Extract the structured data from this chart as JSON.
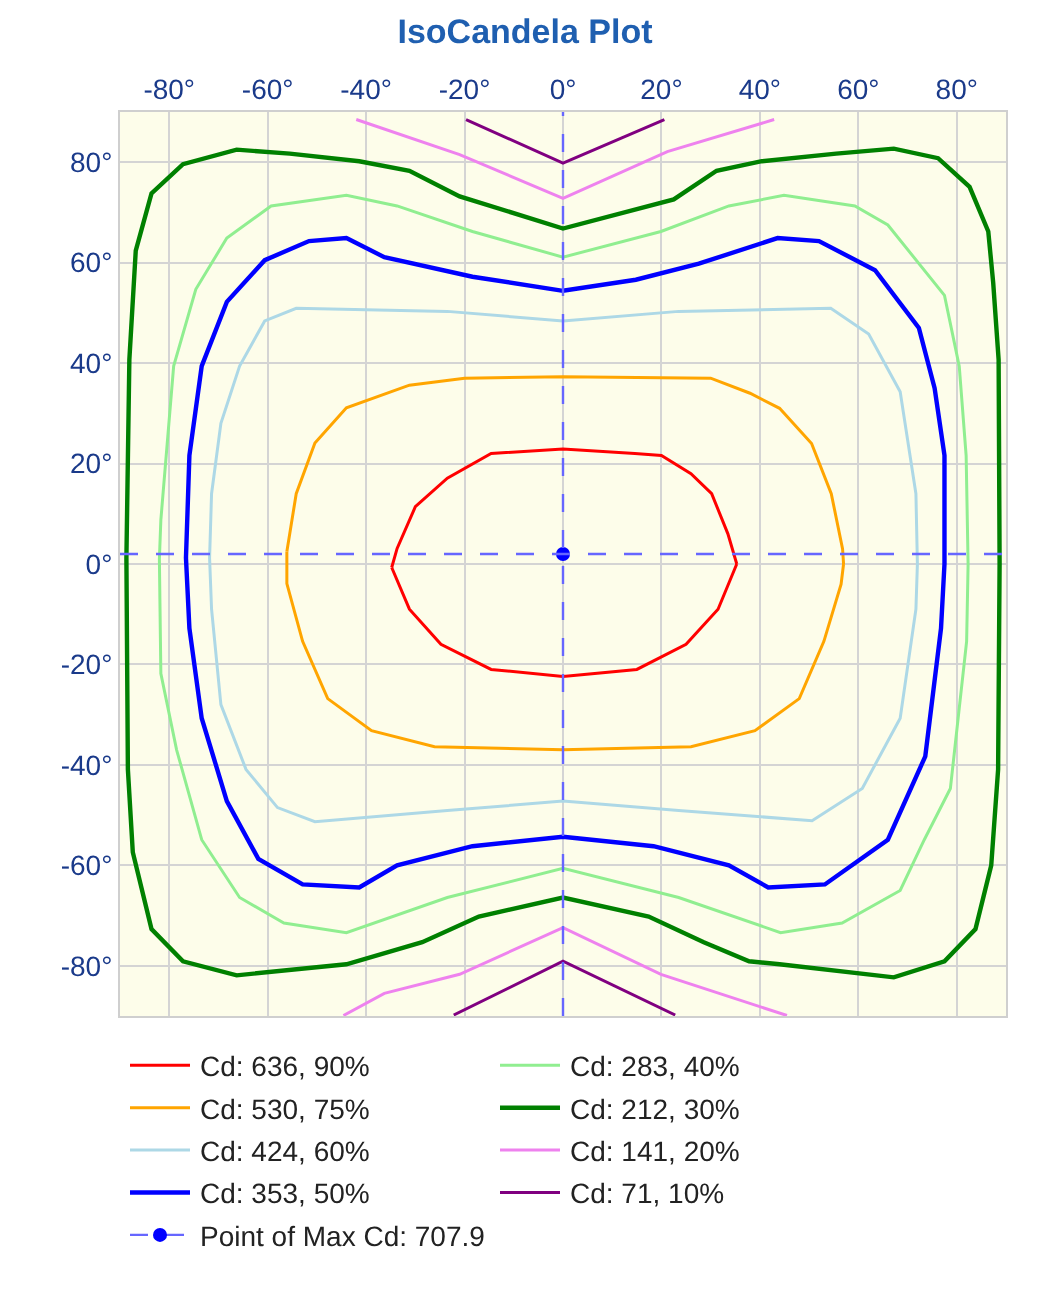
{
  "chart_data": {
    "type": "line",
    "title": "IsoCandela Plot",
    "grid": true,
    "legend": "bottom",
    "xlim": [
      -90,
      90
    ],
    "ylim": [
      -90,
      90
    ],
    "xticks": [
      {
        "value": -80,
        "label": "-80°"
      },
      {
        "value": -60,
        "label": "-60°"
      },
      {
        "value": -40,
        "label": "-40°"
      },
      {
        "value": -20,
        "label": "-20°"
      },
      {
        "value": 0,
        "label": "0°"
      },
      {
        "value": 20,
        "label": "20°"
      },
      {
        "value": 40,
        "label": "40°"
      },
      {
        "value": 60,
        "label": "60°"
      },
      {
        "value": 80,
        "label": "80°"
      }
    ],
    "yticks": [
      {
        "value": -80,
        "label": "-80°"
      },
      {
        "value": -60,
        "label": "-60°"
      },
      {
        "value": -40,
        "label": "-40°"
      },
      {
        "value": -20,
        "label": "-20°"
      },
      {
        "value": 0,
        "label": "0°"
      },
      {
        "value": 20,
        "label": "20°"
      },
      {
        "value": 40,
        "label": "40°"
      },
      {
        "value": 60,
        "label": "60°"
      },
      {
        "value": 80,
        "label": "80°"
      }
    ],
    "series": [
      {
        "name": "Cd: 636, 90%",
        "color": "#ff0000",
        "x": [
          -34.8,
          -33.7,
          -30,
          -23.5,
          -14.6,
          0,
          14.6,
          20,
          26,
          30.2,
          33.5,
          35.3,
          null,
          35.3,
          31.5,
          25,
          15,
          0,
          -14.6,
          -24.8,
          -31.2,
          -34.8
        ],
        "values": [
          -0.7,
          3.1,
          11.4,
          17.1,
          22,
          22.9,
          22,
          21.6,
          18,
          14,
          6,
          0,
          null,
          0,
          -9,
          -16,
          -21,
          -22.4,
          -21,
          -16,
          -9,
          -0.7
        ]
      },
      {
        "name": "Cd: 530, 75%",
        "color": "#ffa500",
        "x": [
          -56.1,
          -54.2,
          -50.4,
          -44,
          -31.2,
          -20,
          0,
          30,
          38,
          44,
          50.5,
          54.5,
          56.8,
          57,
          null,
          57,
          56.5,
          53,
          48,
          39,
          26,
          0,
          -26.1,
          -38.9,
          -47.8,
          -52.9,
          -56.1,
          -56.1
        ],
        "values": [
          2.5,
          14,
          24.1,
          31.1,
          35.6,
          37,
          37.3,
          37,
          34,
          31,
          24,
          14,
          3,
          0,
          null,
          0,
          -4,
          -15.4,
          -26.8,
          -33.2,
          -36.4,
          -37,
          -36.4,
          -33.2,
          -26.8,
          -15.4,
          -3.9,
          2.5
        ]
      },
      {
        "name": "Cd: 424, 60%",
        "color": "#add8e6",
        "x": [
          -71.8,
          -71.4,
          -69.5,
          -65.7,
          -60.6,
          -54.2,
          -23.5,
          0,
          23.5,
          54.4,
          62.1,
          68.5,
          71.7,
          72,
          null,
          72,
          71.7,
          68.5,
          60.8,
          50.6,
          23.5,
          0,
          -23.5,
          -50.4,
          -58,
          -64.4,
          -69.5,
          -71.4,
          -71.8
        ],
        "values": [
          1.2,
          14,
          28,
          39.4,
          48.4,
          50.9,
          50.3,
          48.4,
          50.3,
          50.9,
          45.8,
          34.3,
          14,
          0,
          null,
          0,
          -9,
          -30.7,
          -44.7,
          -51.1,
          -49.1,
          -47.2,
          -49.1,
          -51.3,
          -48.5,
          -40.9,
          -28,
          -9,
          1.2
        ]
      },
      {
        "name": "Cd: 353, 50%",
        "color": "#0000ff",
        "x": [
          -76.6,
          -75.9,
          -73.4,
          -68.3,
          -60.6,
          -51.6,
          -44,
          -36.3,
          -18.4,
          0,
          14.8,
          27.6,
          43.6,
          52,
          63.4,
          72.3,
          75.5,
          77.5,
          77.5,
          null,
          77.5,
          76.8,
          73.6,
          66,
          53.2,
          41.7,
          33.7,
          18.4,
          0,
          -18.4,
          -33.7,
          -41.4,
          -52.9,
          -61.9,
          -68.3,
          -73.4,
          -75.9,
          -76.6
        ],
        "values": [
          1.2,
          21.6,
          39.4,
          52.2,
          60.5,
          64.3,
          64.9,
          61.1,
          57.2,
          54.4,
          56.6,
          59.8,
          64.9,
          64.3,
          58.5,
          47,
          35,
          21.6,
          0,
          null,
          0,
          -12.8,
          -38.3,
          -54.9,
          -63.8,
          -64.4,
          -60,
          -56.2,
          -54.3,
          -56.2,
          -60,
          -64.4,
          -63.8,
          -58.7,
          -47.2,
          -30.7,
          -12.8,
          1.2
        ]
      },
      {
        "name": "Cd: 283, 40%",
        "color": "#90ee90",
        "x": [
          -82,
          -81.7,
          -79.1,
          -74.6,
          -68.3,
          -59.3,
          -44,
          -33.7,
          -18.4,
          0,
          19.9,
          33.7,
          44.9,
          59.3,
          66,
          77.5,
          80.5,
          81.9,
          82.3,
          null,
          82.3,
          82,
          78.7,
          73.4,
          68.5,
          56.7,
          44.2,
          23.5,
          0,
          -23.5,
          -44,
          -56.7,
          -65.7,
          -73.4,
          -78.5,
          -81.7,
          -82
        ],
        "values": [
          1,
          8.8,
          39.4,
          54.7,
          64.9,
          71.3,
          73.4,
          71.3,
          66.2,
          61.1,
          66.2,
          71.3,
          73.4,
          71.3,
          67.5,
          53.5,
          39.4,
          21.6,
          0,
          null,
          0,
          -15.4,
          -44.7,
          -54.9,
          -65,
          -71.5,
          -73.4,
          -66.4,
          -60.6,
          -66.4,
          -73.4,
          -71.5,
          -66.4,
          -54.9,
          -37,
          -21.8,
          1
        ]
      },
      {
        "name": "Cd: 212, 30%",
        "color": "#008000",
        "x": [
          -88.7,
          -88.1,
          -86.8,
          -83.6,
          -77.2,
          -66.3,
          -55.5,
          -41.4,
          -31.2,
          -21,
          0,
          22.5,
          31.2,
          40.4,
          55.5,
          67.2,
          76.2,
          82.6,
          86.4,
          87.4,
          88.5,
          88.7,
          null,
          88.7,
          88.4,
          87,
          83.8,
          77.5,
          67.2,
          44,
          37.8,
          28.6,
          17.4,
          0,
          -17.1,
          -28.6,
          -44,
          -66.3,
          -77.2,
          -83.6,
          -87.4,
          -88.4,
          -88.7
        ],
        "values": [
          1.2,
          40.7,
          62.4,
          73.8,
          79.6,
          82.5,
          81.7,
          80.2,
          78.3,
          73.2,
          66.8,
          72.6,
          78.3,
          80.2,
          81.7,
          82.7,
          80.8,
          75.1,
          66.2,
          56,
          40.7,
          0,
          null,
          0,
          -40.9,
          -60,
          -72.7,
          -79.1,
          -82.3,
          -79.7,
          -79.1,
          -75.3,
          -70.2,
          -66.4,
          -70.2,
          -75.3,
          -79.7,
          -81.9,
          -79.1,
          -72.7,
          -57.4,
          -40.9,
          1.2
        ]
      },
      {
        "name": "Cd: 141, 20%",
        "color": "#ee82ee",
        "x": [
          -42,
          -21,
          0,
          21.2,
          42.9,
          null,
          -44.6,
          -36.3,
          -21,
          0,
          19.9,
          45.5
        ],
        "values": [
          88.5,
          81.5,
          72.8,
          82.1,
          88.5,
          null,
          -89.9,
          -85.5,
          -81.7,
          -72.4,
          -81.7,
          -89.9
        ]
      },
      {
        "name": "Cd: 71, 10%",
        "color": "#800080",
        "x": [
          -19.7,
          0,
          20.6,
          null,
          -22.2,
          0,
          22.8
        ],
        "values": [
          88.5,
          79.8,
          88.5,
          null,
          -89.8,
          -79.1,
          -89.8
        ]
      },
      {
        "type": "line",
        "name": "Point of Max Cd: 707.9",
        "marker": "circle",
        "line_style": "dashed",
        "color": "#0000ff",
        "x": [
          0
        ],
        "values": [
          2
        ]
      }
    ],
    "ref_lines": [
      {
        "axis": "x",
        "value": 0,
        "color": "#6666ff",
        "line_style": "dashed"
      },
      {
        "axis": "y",
        "value": 2,
        "color": "#6666ff",
        "line_style": "dashed"
      }
    ]
  }
}
